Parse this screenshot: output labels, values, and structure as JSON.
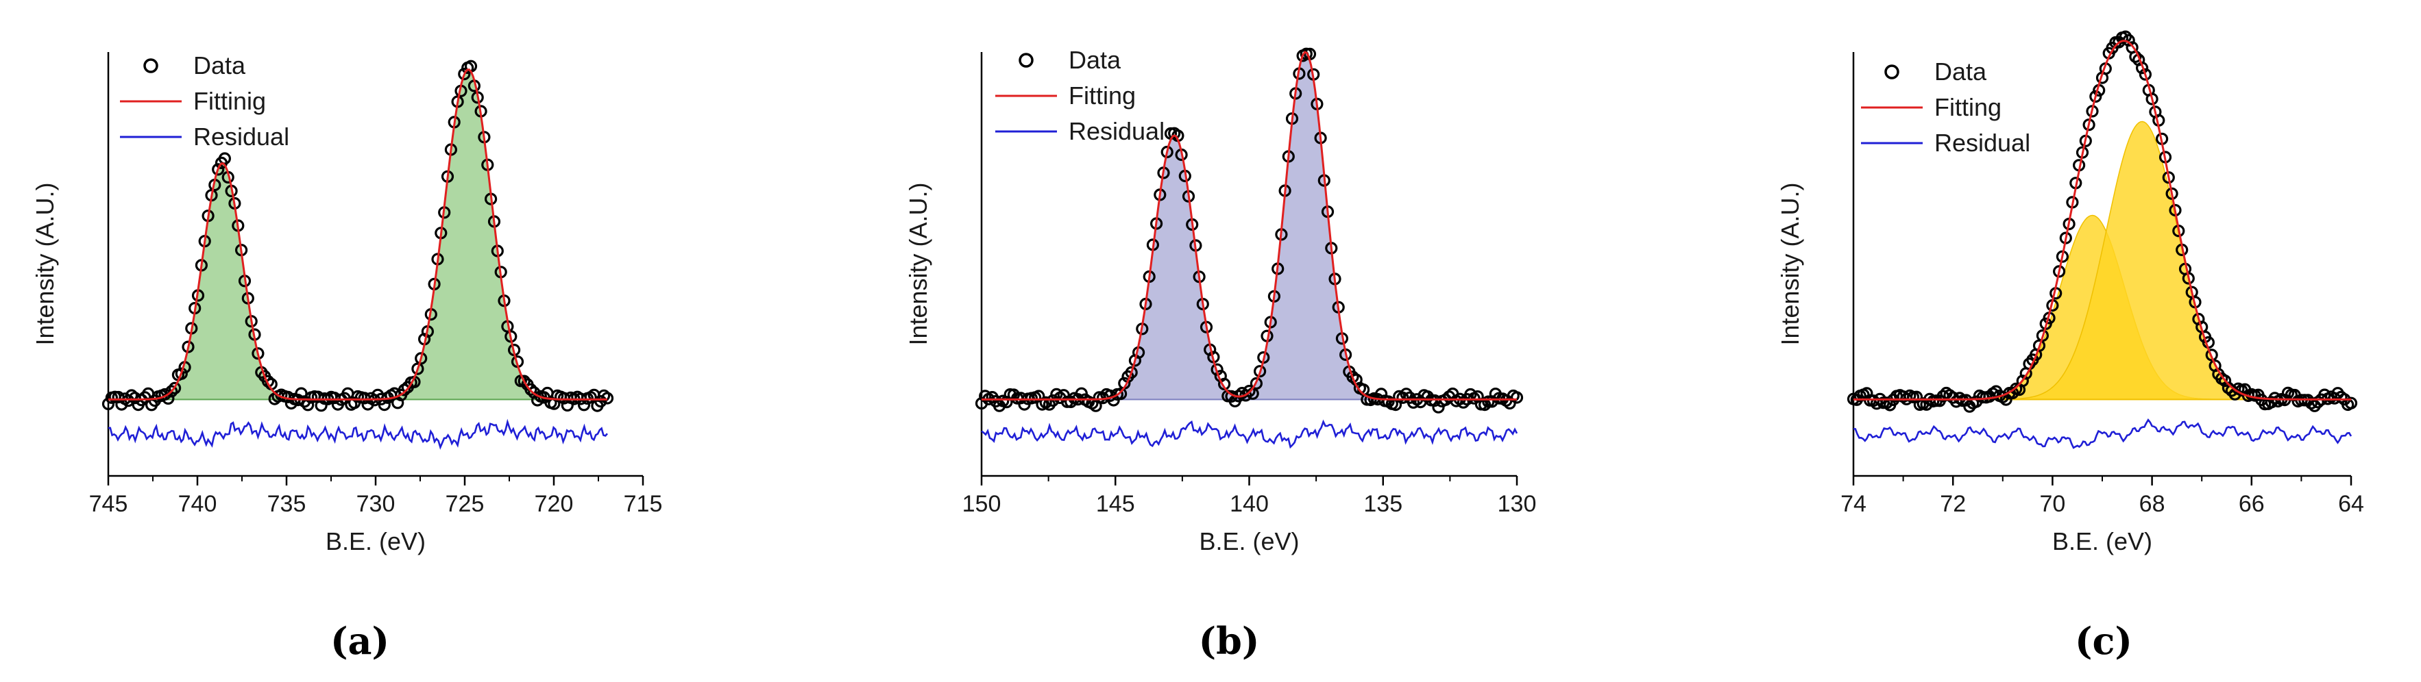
{
  "chart_data": [
    {
      "type": "line",
      "panel": "a",
      "caption": "(a)",
      "xlabel": "B.E. (eV)",
      "ylabel": "Intensity (A.U.)",
      "xlim": [
        745,
        715
      ],
      "ylim": [
        -0.22,
        1.0
      ],
      "xticks": [
        745,
        740,
        735,
        730,
        725,
        720,
        715
      ],
      "data_range": [
        745,
        717
      ],
      "legend": {
        "data": "Data",
        "fit": "Fittinig",
        "residual": "Residual"
      },
      "peaks": [
        {
          "center": 738.6,
          "height": 0.68,
          "width": 1.1
        },
        {
          "center": 724.8,
          "height": 0.95,
          "width": 1.3
        }
      ],
      "colors": {
        "fill": "#9ccf8f",
        "fill_edge": "#5fa653",
        "fit": "#e02020",
        "residual": "#1f1fd6",
        "data": "#000000"
      },
      "residual_offset": -0.1
    },
    {
      "type": "line",
      "panel": "b",
      "caption": "(b)",
      "xlabel": "B.E. (eV)",
      "ylabel": "Intensity (A.U.)",
      "xlim": [
        150,
        130
      ],
      "ylim": [
        -0.22,
        1.0
      ],
      "xticks": [
        150,
        145,
        140,
        135,
        130
      ],
      "data_range": [
        150,
        130
      ],
      "legend": {
        "data": "Data",
        "fit": "Fitting",
        "residual": "Residual"
      },
      "peaks": [
        {
          "center": 142.8,
          "height": 0.76,
          "width": 0.75
        },
        {
          "center": 137.9,
          "height": 1.0,
          "width": 0.75
        }
      ],
      "colors": {
        "fill": "#aeb0d8",
        "fill_edge": "#7f82c0",
        "fit": "#e02020",
        "residual": "#1f1fd6",
        "data": "#000000"
      },
      "residual_offset": -0.1
    },
    {
      "type": "line",
      "panel": "c",
      "caption": "(c)",
      "xlabel": "B.E. (eV)",
      "ylabel": "Intensity (A.U.)",
      "xlim": [
        74,
        64
      ],
      "ylim": [
        -0.22,
        1.0
      ],
      "xticks": [
        74,
        72,
        70,
        68,
        66,
        64
      ],
      "data_range": [
        74,
        64
      ],
      "legend": {
        "data": "Data",
        "fit": "Fitting",
        "residual": "Residual"
      },
      "peaks": [
        {
          "center": 69.2,
          "height": 0.53,
          "width": 0.65
        },
        {
          "center": 68.2,
          "height": 0.8,
          "width": 0.72
        }
      ],
      "colors": {
        "fill": "#ffd624",
        "fill_edge": "#f0c000",
        "fit": "#e02020",
        "residual": "#1f1fd6",
        "data": "#000000"
      },
      "residual_offset": -0.1
    }
  ]
}
